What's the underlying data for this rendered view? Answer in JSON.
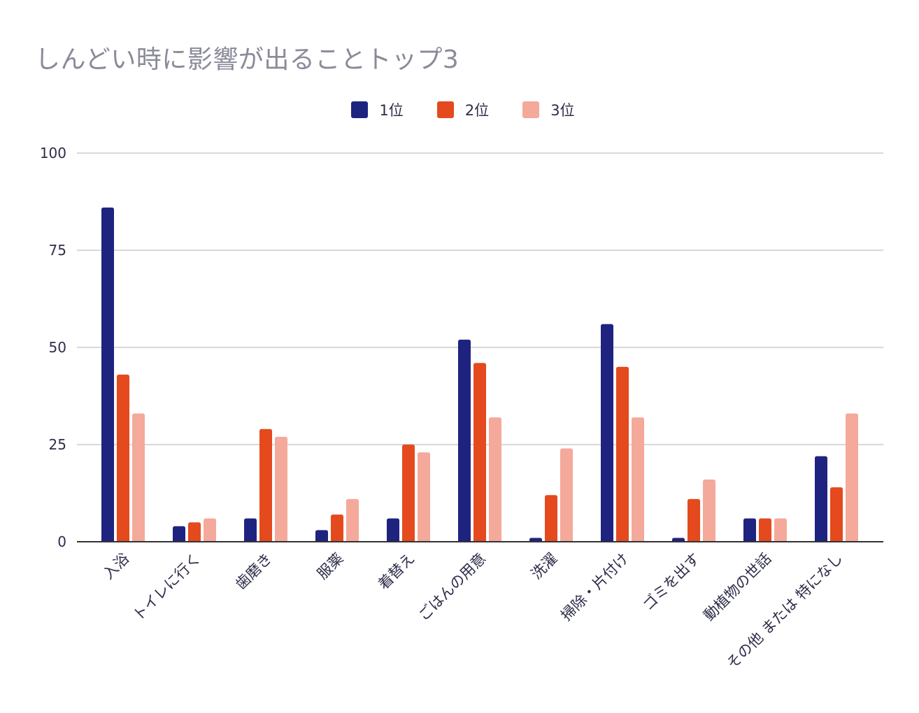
{
  "chart_data": {
    "type": "bar",
    "title": "しんどい時に影響が出ることトップ3",
    "xlabel": "",
    "ylabel": "",
    "ylim": [
      0,
      100
    ],
    "yticks": [
      0,
      25,
      50,
      75,
      100
    ],
    "grid": true,
    "legend_position": "top-center",
    "categories": [
      "入浴",
      "トイレに行く",
      "歯磨き",
      "服薬",
      "着替え",
      "ごはんの用意",
      "洗濯",
      "掃除・片付け",
      "ゴミを出す",
      "動植物の世話",
      "その他 または 特になし"
    ],
    "series": [
      {
        "name": "1位",
        "color": "#1f2380",
        "values": [
          86,
          4,
          6,
          3,
          6,
          52,
          1,
          56,
          1,
          6,
          22
        ]
      },
      {
        "name": "2位",
        "color": "#e44a1d",
        "values": [
          43,
          5,
          29,
          7,
          25,
          46,
          12,
          45,
          11,
          6,
          14
        ]
      },
      {
        "name": "3位",
        "color": "#f4a99b",
        "values": [
          33,
          6,
          27,
          11,
          23,
          32,
          24,
          32,
          16,
          6,
          33
        ]
      }
    ]
  }
}
